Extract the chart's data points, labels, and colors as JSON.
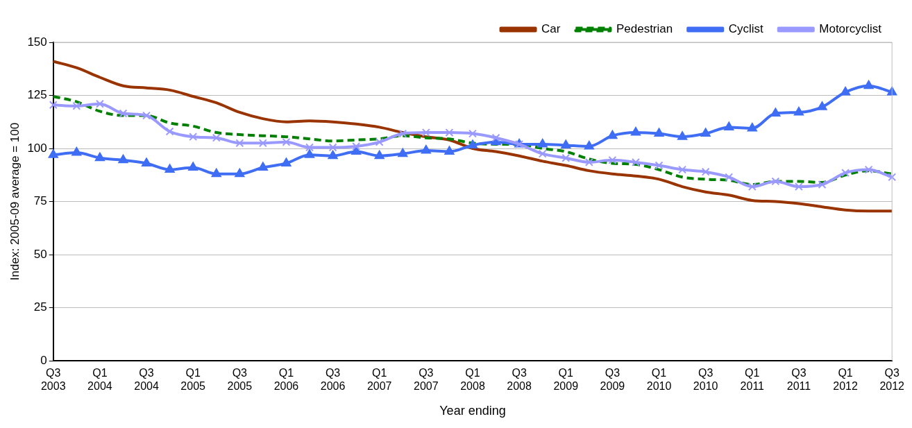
{
  "chart_data": {
    "type": "line",
    "xlabel": "Year ending",
    "ylabel": "Index: 2005-09 average = 100",
    "categories": [
      "Q3 2003",
      null,
      "Q1 2004",
      null,
      "Q3 2004",
      null,
      "Q1 2005",
      null,
      "Q3 2005",
      null,
      "Q1 2006",
      null,
      "Q3 2006",
      null,
      "Q1 2007",
      null,
      "Q3 2007",
      null,
      "Q1 2008",
      null,
      "Q3 2008",
      null,
      "Q1 2009",
      null,
      "Q3 2009",
      null,
      "Q1 2010",
      null,
      "Q3 2010",
      null,
      "Q1 2011",
      null,
      "Q3 2011",
      null,
      "Q1 2012",
      null,
      "Q3 2012"
    ],
    "series": [
      {
        "name": "Car",
        "color": "#993300",
        "marker": "none",
        "line_style": "solid",
        "values": [
          141,
          138,
          133.5,
          129.5,
          128.5,
          127.5,
          124.5,
          121.5,
          117,
          114,
          112.5,
          113,
          112.5,
          111.5,
          110,
          107.5,
          105.5,
          104,
          100,
          98.5,
          96.5,
          94,
          92,
          89.5,
          88,
          87,
          85.5,
          82,
          79.5,
          78,
          75.5,
          75,
          74,
          72.5,
          71,
          70.5,
          70.5
        ]
      },
      {
        "name": "Pedestrian",
        "color": "#008000",
        "marker": "none",
        "line_style": "dashed",
        "values": [
          124.5,
          122,
          117.5,
          115.5,
          115.5,
          112,
          110.5,
          107.5,
          106.5,
          106,
          105.5,
          104.5,
          103.5,
          104,
          104.5,
          106,
          105,
          104.5,
          102.5,
          102,
          102,
          100,
          98.5,
          95,
          93,
          92.5,
          90,
          86.5,
          85.5,
          85,
          83,
          84.5,
          84.5,
          84,
          87.5,
          89.5,
          88
        ]
      },
      {
        "name": "Cyclist",
        "color": "#3f6ef5",
        "marker": "triangle",
        "line_style": "solid",
        "values": [
          97,
          98,
          95.5,
          94.5,
          93,
          90,
          91,
          88,
          88,
          91,
          93,
          97,
          96.5,
          98.5,
          96.5,
          97.5,
          99,
          98.5,
          101.5,
          103,
          102,
          102,
          101.5,
          101,
          106,
          107.5,
          107,
          105.5,
          107,
          110,
          109.5,
          116.5,
          117,
          119.5,
          126.5,
          129.5,
          126.5
        ]
      },
      {
        "name": "Motorcyclist",
        "color": "#9999ff",
        "marker": "cross",
        "line_style": "solid",
        "values": [
          120.5,
          120,
          121,
          116.5,
          115.5,
          108,
          105.5,
          105,
          102.5,
          102.5,
          103,
          100.5,
          100.5,
          101,
          103,
          107,
          107.5,
          107.5,
          107,
          105,
          102,
          97.5,
          95.5,
          93.5,
          94.5,
          93.5,
          92,
          90,
          89,
          86.5,
          82,
          84.5,
          82,
          83,
          88.5,
          90,
          86.5
        ]
      }
    ],
    "ylim": [
      0,
      150
    ],
    "yticks": [
      0,
      25,
      50,
      75,
      100,
      125,
      150
    ],
    "grid": "y",
    "legend": "top right"
  }
}
